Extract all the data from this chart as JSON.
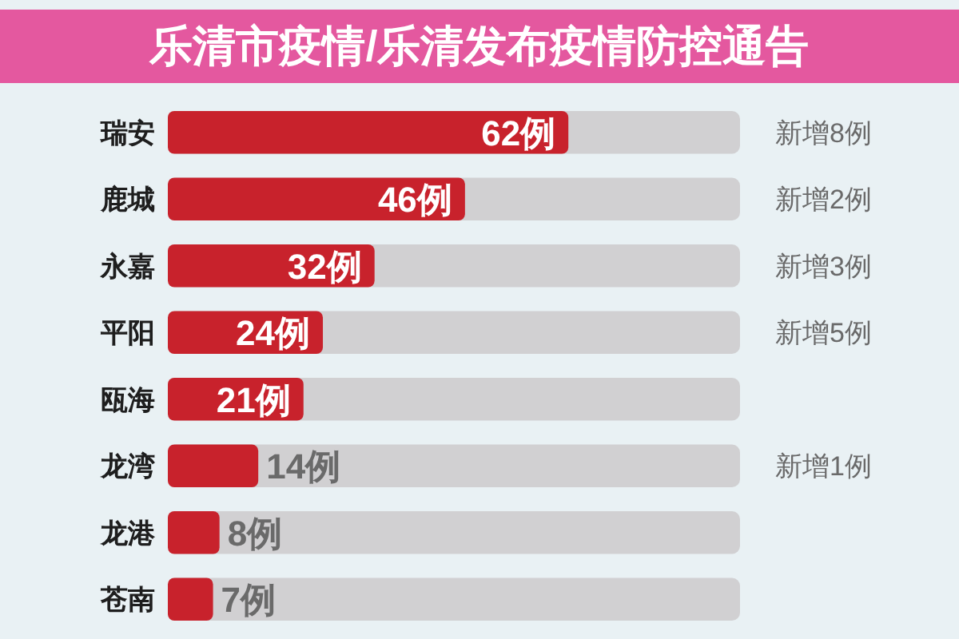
{
  "chart_data": {
    "type": "bar",
    "orientation": "horizontal",
    "title": "乐清市疫情/乐清发布疫情防控通告",
    "categories": [
      "瑞安",
      "鹿城",
      "永嘉",
      "平阳",
      "瓯海",
      "龙湾",
      "龙港",
      "苍南"
    ],
    "y2_categories": [
      "新增8例",
      "新增2例",
      "新增3例",
      "新增5例",
      null,
      "新增1例",
      null,
      null
    ],
    "values": [
      62,
      46,
      32,
      24,
      21,
      14,
      8,
      7
    ],
    "value_labels": [
      "62例",
      "46例",
      "32例",
      "24例",
      "21例",
      "14例",
      "8例",
      "7例"
    ],
    "color": "#c8222c"
  }
}
